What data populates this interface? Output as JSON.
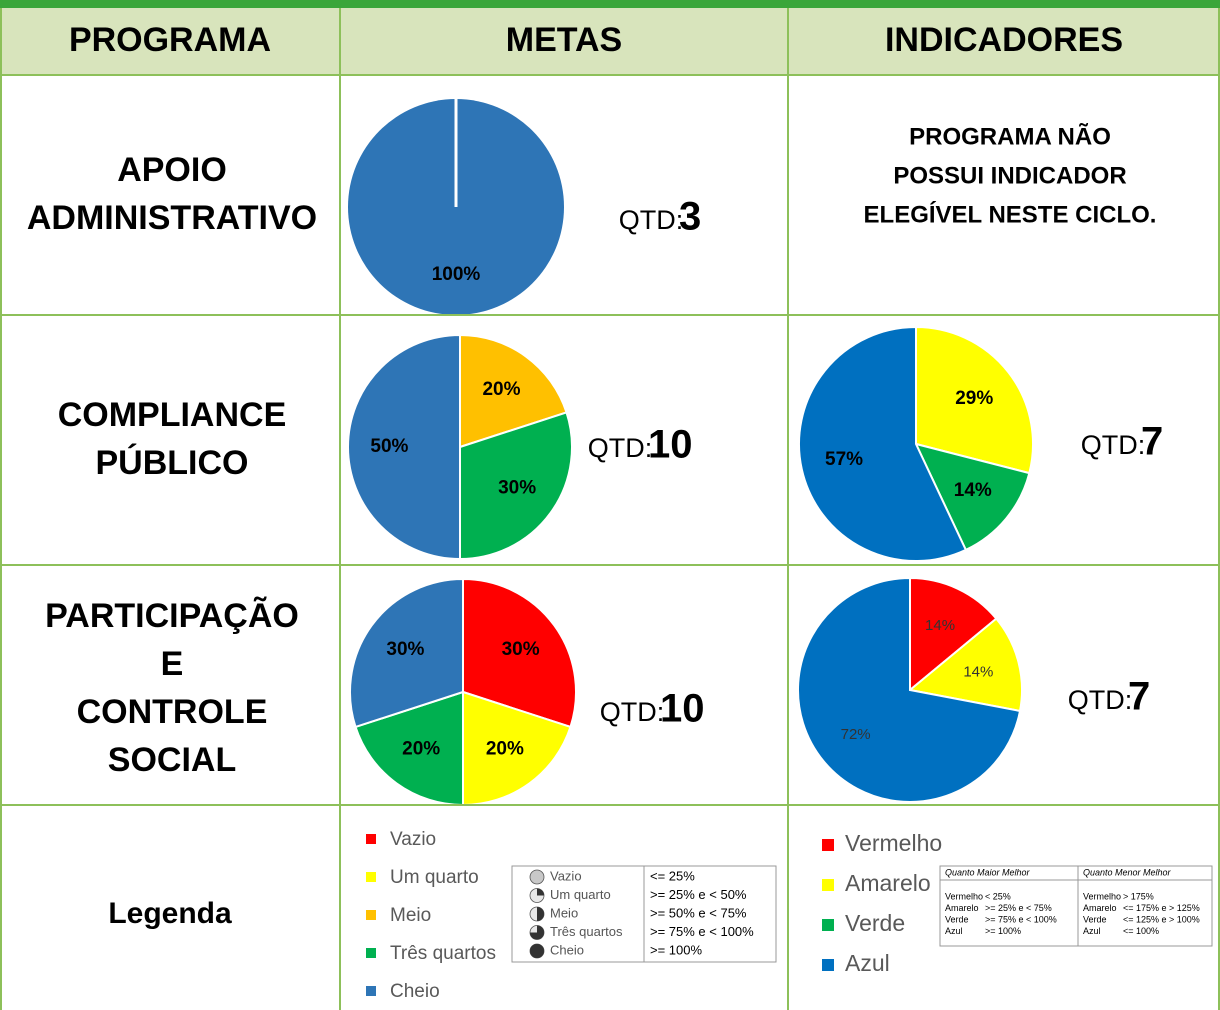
{
  "table": {
    "columns": [
      "PROGRAMA",
      "METAS",
      "INDICADORES"
    ],
    "rows": [
      {
        "program": [
          "APOIO",
          "ADMINISTRATIVO"
        ],
        "metas": {
          "values": [
            100
          ],
          "value_labels": [
            "100%"
          ],
          "colors": [
            "#2e75b6"
          ],
          "qtd_label": "QTD:",
          "qtd": 3
        },
        "indicadores": {
          "note": [
            "PROGRAMA  NÃO",
            "POSSUI INDICADOR",
            "ELEGÍVEL NESTE CICLO."
          ]
        }
      },
      {
        "program": [
          "COMPLIANCE",
          "PÚBLICO"
        ],
        "metas": {
          "values": [
            20,
            30,
            50
          ],
          "value_labels": [
            "20%",
            "30%",
            "50%"
          ],
          "colors": [
            "#ffc000",
            "#00b050",
            "#2e75b6"
          ],
          "qtd_label": "QTD:",
          "qtd": 10
        },
        "indicadores": {
          "values": [
            29,
            14,
            57
          ],
          "value_labels": [
            "29%",
            "14%",
            "57%"
          ],
          "colors": [
            "#ffff00",
            "#00b050",
            "#0070c0"
          ],
          "qtd_label": "QTD:",
          "qtd": 7
        }
      },
      {
        "program": [
          "PARTICIPAÇÃO",
          "E",
          "CONTROLE",
          "SOCIAL"
        ],
        "metas": {
          "values": [
            30,
            20,
            20,
            30
          ],
          "value_labels": [
            "30%",
            "20%",
            "20%",
            "30%"
          ],
          "colors": [
            "#ff0000",
            "#ffff00",
            "#00b050",
            "#2e75b6"
          ],
          "qtd_label": "QTD:",
          "qtd": 10
        },
        "indicadores": {
          "values": [
            14,
            14,
            72
          ],
          "value_labels": [
            "14%",
            "14%",
            "72%"
          ],
          "colors": [
            "#ff0000",
            "#ffff00",
            "#0070c0"
          ],
          "qtd_label": "QTD:",
          "qtd": 7
        }
      }
    ],
    "legend": {
      "title": "Legenda",
      "metas": {
        "items": [
          {
            "label": "Vazio",
            "color": "#ff0000"
          },
          {
            "label": "Um quarto",
            "color": "#ffff00"
          },
          {
            "label": "Meio",
            "color": "#ffc000"
          },
          {
            "label": "Três quartos",
            "color": "#00b050"
          },
          {
            "label": "Cheio",
            "color": "#2e75b6"
          }
        ],
        "table": [
          [
            "Vazio",
            "<= 25%"
          ],
          [
            "Um quarto",
            ">= 25% e < 50%"
          ],
          [
            "Meio",
            ">= 50% e < 75%"
          ],
          [
            "Três quartos",
            ">= 75% e < 100%"
          ],
          [
            "Cheio",
            ">= 100%"
          ]
        ]
      },
      "indicadores": {
        "items": [
          {
            "label": "Vermelho",
            "color": "#ff0000"
          },
          {
            "label": "Amarelo",
            "color": "#ffff00"
          },
          {
            "label": "Verde",
            "color": "#00b050"
          },
          {
            "label": "Azul",
            "color": "#0070c0"
          }
        ],
        "table_headers": [
          "Quanto Maior Melhor",
          "Quanto Menor Melhor"
        ],
        "table": [
          [
            "Vermelho",
            "< 25%",
            "Vermelho",
            "> 175%"
          ],
          [
            "Amarelo",
            ">= 25% e < 75%",
            "Amarelo",
            "<= 175% e > 125%"
          ],
          [
            "Verde",
            ">= 75% e < 100%",
            "Verde",
            "<= 125% e > 100%"
          ],
          [
            "Azul",
            ">= 100%",
            "Azul",
            "<= 100%"
          ]
        ]
      }
    }
  }
}
